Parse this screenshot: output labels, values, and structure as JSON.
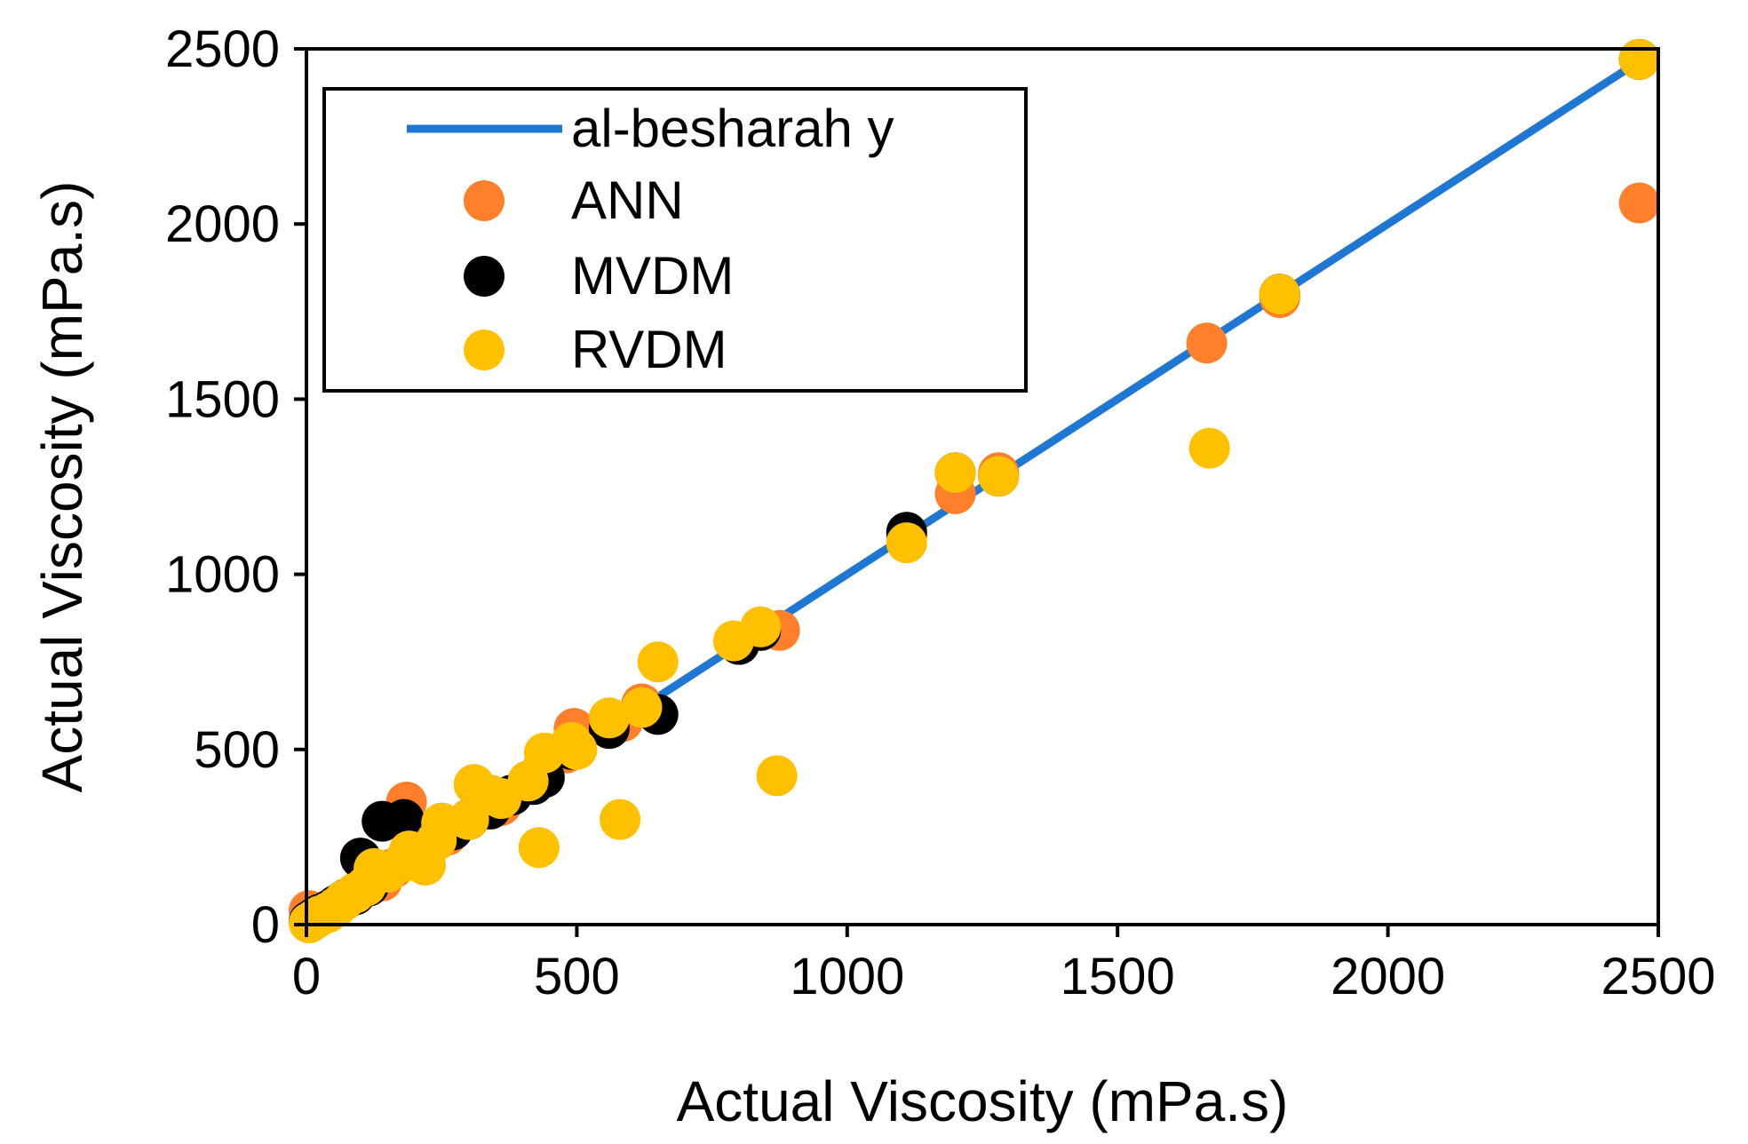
{
  "chart_data": {
    "type": "scatter",
    "title": "",
    "xlabel": "Actual Viscosity (mPa.s)",
    "ylabel": "Actual Viscosity (mPa.s)",
    "xlim": [
      0,
      2500
    ],
    "ylim": [
      0,
      2500
    ],
    "xticks": [
      "0",
      "500",
      "1000",
      "1500",
      "2000",
      "2500"
    ],
    "yticks": [
      "0",
      "500",
      "1000",
      "1500",
      "2000",
      "2500"
    ],
    "grid": false,
    "legend_placement": "top-left",
    "series": [
      {
        "name": "al-besharah y",
        "kind": "line",
        "color": "#1f77d4",
        "points": [
          [
            0,
            0
          ],
          [
            2470,
            2470
          ]
        ]
      },
      {
        "name": "ANN",
        "kind": "marker",
        "color": "#ff7f2a",
        "points": [
          [
            5,
            40
          ],
          [
            10,
            15
          ],
          [
            20,
            25
          ],
          [
            30,
            35
          ],
          [
            45,
            45
          ],
          [
            60,
            60
          ],
          [
            75,
            75
          ],
          [
            95,
            95
          ],
          [
            115,
            115
          ],
          [
            140,
            125
          ],
          [
            160,
            160
          ],
          [
            185,
            350
          ],
          [
            200,
            200
          ],
          [
            235,
            235
          ],
          [
            260,
            255
          ],
          [
            300,
            300
          ],
          [
            330,
            330
          ],
          [
            360,
            340
          ],
          [
            410,
            410
          ],
          [
            440,
            460
          ],
          [
            480,
            490
          ],
          [
            495,
            560
          ],
          [
            560,
            560
          ],
          [
            585,
            580
          ],
          [
            620,
            630
          ],
          [
            800,
            800
          ],
          [
            840,
            840
          ],
          [
            875,
            840
          ],
          [
            1110,
            1110
          ],
          [
            1200,
            1230
          ],
          [
            1280,
            1290
          ],
          [
            1665,
            1660
          ],
          [
            1800,
            1790
          ],
          [
            2465,
            2060
          ],
          [
            2465,
            2470
          ]
        ]
      },
      {
        "name": "MVDM",
        "kind": "marker",
        "color": "#000000",
        "points": [
          [
            5,
            10
          ],
          [
            15,
            20
          ],
          [
            25,
            30
          ],
          [
            40,
            40
          ],
          [
            55,
            55
          ],
          [
            70,
            70
          ],
          [
            90,
            85
          ],
          [
            100,
            190
          ],
          [
            115,
            110
          ],
          [
            140,
            295
          ],
          [
            180,
            300
          ],
          [
            200,
            210
          ],
          [
            240,
            250
          ],
          [
            270,
            270
          ],
          [
            300,
            300
          ],
          [
            340,
            330
          ],
          [
            380,
            370
          ],
          [
            420,
            400
          ],
          [
            440,
            420
          ],
          [
            490,
            500
          ],
          [
            560,
            560
          ],
          [
            620,
            620
          ],
          [
            650,
            600
          ],
          [
            800,
            800
          ],
          [
            840,
            840
          ],
          [
            1110,
            1120
          ],
          [
            1200,
            1290
          ],
          [
            1280,
            1280
          ],
          [
            1800,
            1800
          ],
          [
            2465,
            2470
          ]
        ]
      },
      {
        "name": "RVDM",
        "kind": "marker",
        "color": "#ffc000",
        "points": [
          [
            5,
            5
          ],
          [
            15,
            15
          ],
          [
            25,
            25
          ],
          [
            40,
            35
          ],
          [
            55,
            50
          ],
          [
            70,
            70
          ],
          [
            90,
            90
          ],
          [
            110,
            110
          ],
          [
            125,
            160
          ],
          [
            150,
            150
          ],
          [
            180,
            180
          ],
          [
            190,
            210
          ],
          [
            220,
            170
          ],
          [
            240,
            240
          ],
          [
            250,
            290
          ],
          [
            300,
            300
          ],
          [
            310,
            400
          ],
          [
            340,
            370
          ],
          [
            360,
            360
          ],
          [
            410,
            410
          ],
          [
            430,
            220
          ],
          [
            440,
            490
          ],
          [
            490,
            520
          ],
          [
            500,
            500
          ],
          [
            560,
            590
          ],
          [
            580,
            300
          ],
          [
            620,
            620
          ],
          [
            650,
            750
          ],
          [
            790,
            810
          ],
          [
            840,
            850
          ],
          [
            870,
            425
          ],
          [
            1110,
            1090
          ],
          [
            1200,
            1290
          ],
          [
            1280,
            1280
          ],
          [
            1670,
            1360
          ],
          [
            1800,
            1800
          ],
          [
            2465,
            2470
          ]
        ]
      }
    ]
  }
}
